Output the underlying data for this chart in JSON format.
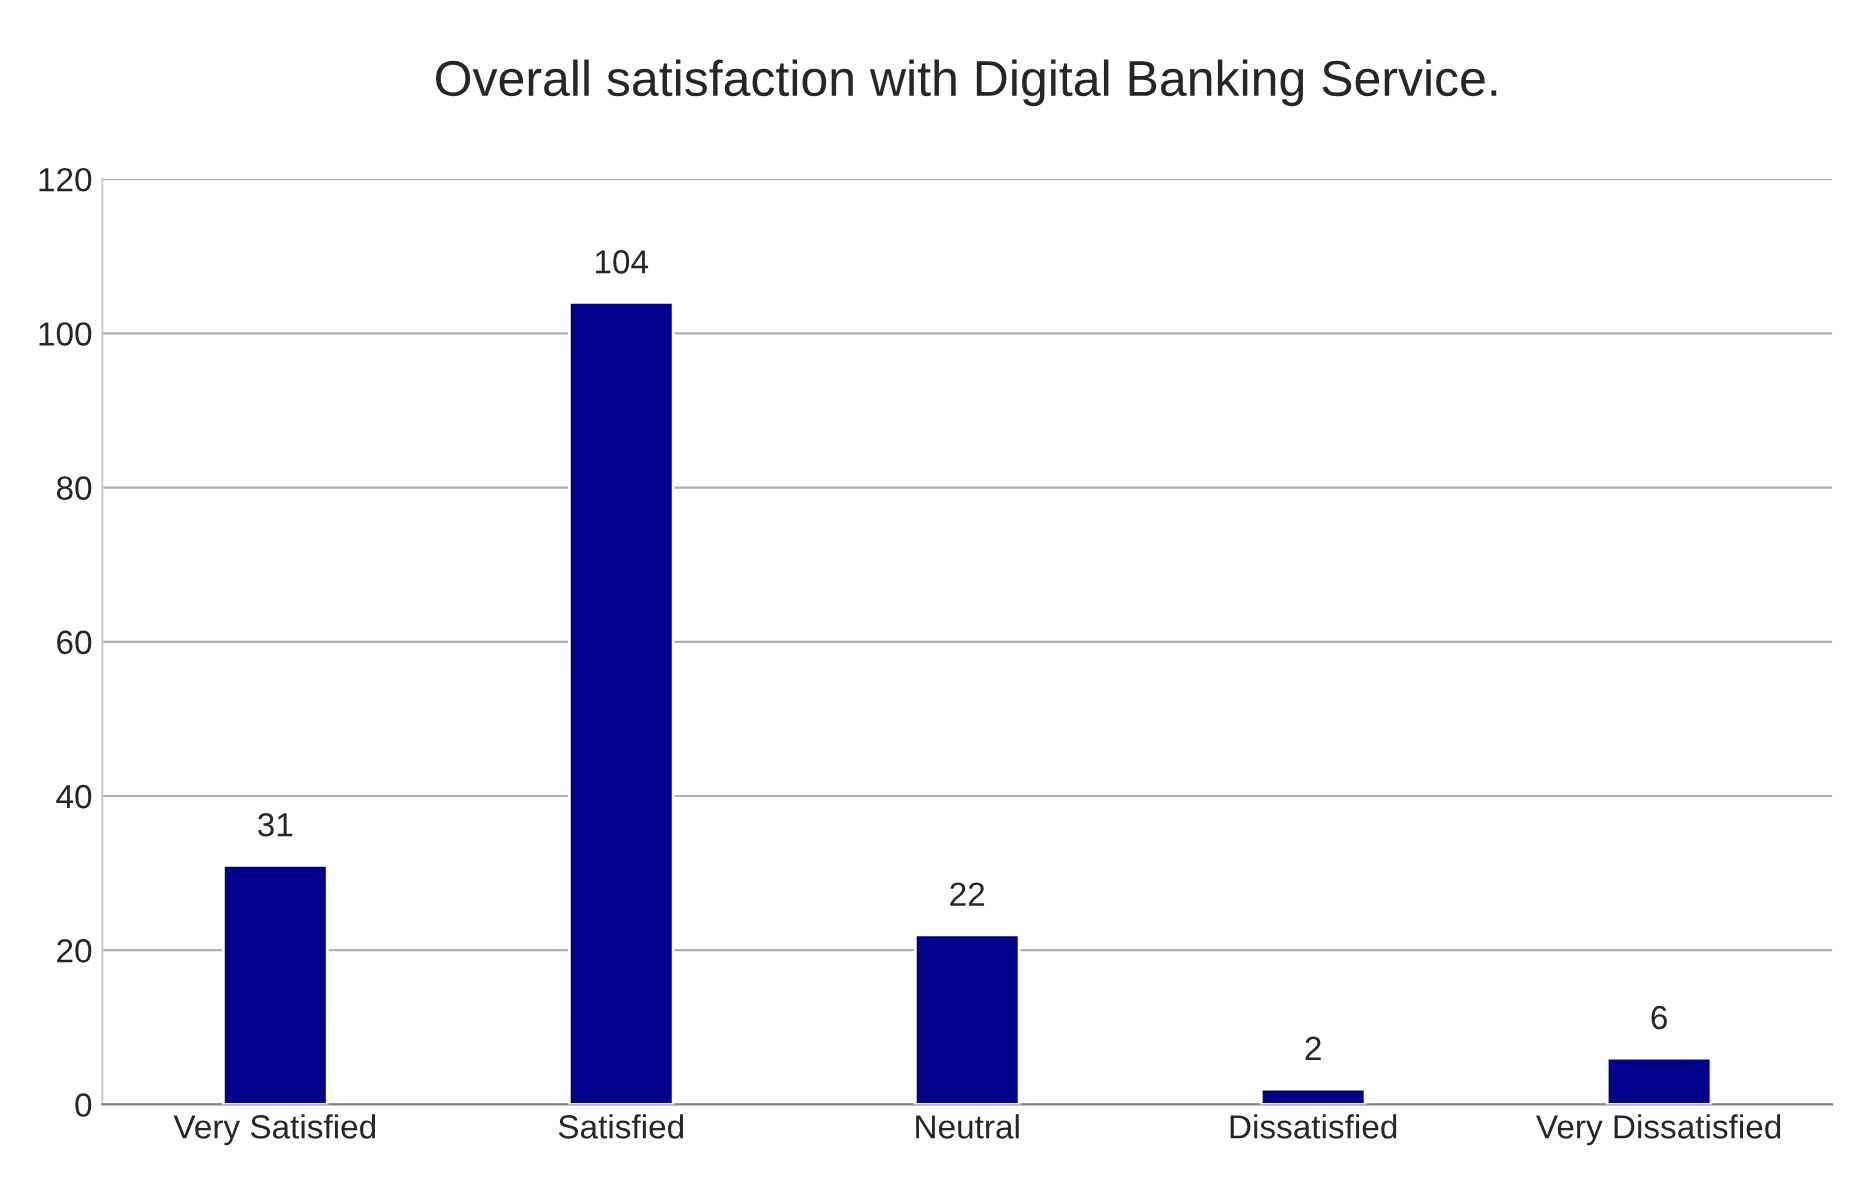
{
  "chart_data": {
    "type": "bar",
    "title": "Overall satisfaction with Digital Banking Service.",
    "categories": [
      "Very Satisfied",
      "Satisfied",
      "Neutral",
      "Dissatisfied",
      "Very Dissatisfied"
    ],
    "values": [
      31,
      104,
      22,
      2,
      6
    ],
    "color": "#00008b",
    "ylim": [
      0,
      120
    ],
    "yticks": [
      0,
      20,
      40,
      60,
      80,
      100,
      120
    ],
    "grid": "y",
    "data_labels": true,
    "legend": false
  }
}
